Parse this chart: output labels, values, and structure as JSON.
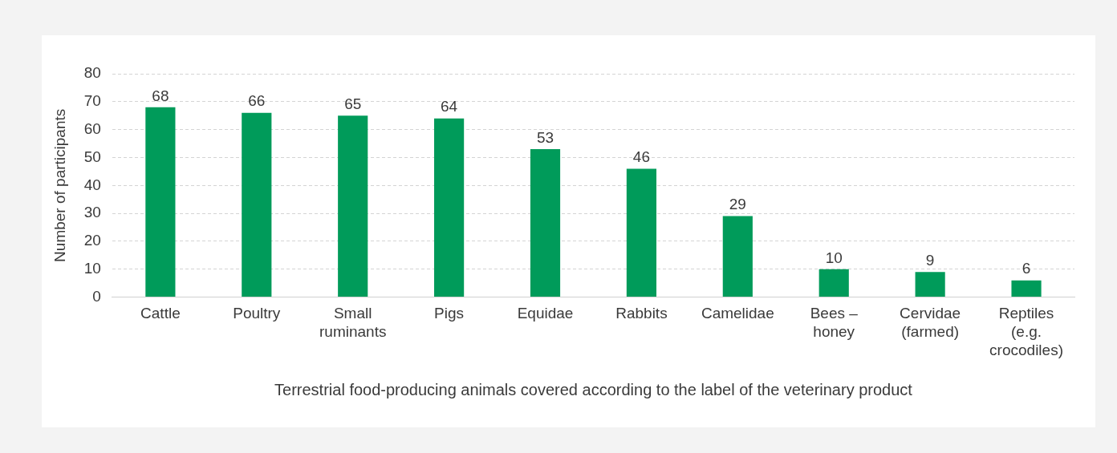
{
  "chart_data": {
    "type": "bar",
    "xlabel": "Terrestrial food-producing animals covered according to the label of the veterinary product",
    "ylabel": "Number of participants",
    "categories": [
      "Cattle",
      "Poultry",
      "Small ruminants",
      "Pigs",
      "Equidae",
      "Rabbits",
      "Camelidae",
      "Bees – honey",
      "Cervidae (farmed)",
      "Reptiles (e.g. crocodiles)"
    ],
    "values": [
      68,
      66,
      65,
      64,
      53,
      46,
      29,
      10,
      9,
      6
    ],
    "color": "#009b5a",
    "ylim": [
      0,
      80
    ],
    "yticks": [
      0,
      10,
      20,
      30,
      40,
      50,
      60,
      70,
      80
    ],
    "grid": "y",
    "data_labels": true
  }
}
